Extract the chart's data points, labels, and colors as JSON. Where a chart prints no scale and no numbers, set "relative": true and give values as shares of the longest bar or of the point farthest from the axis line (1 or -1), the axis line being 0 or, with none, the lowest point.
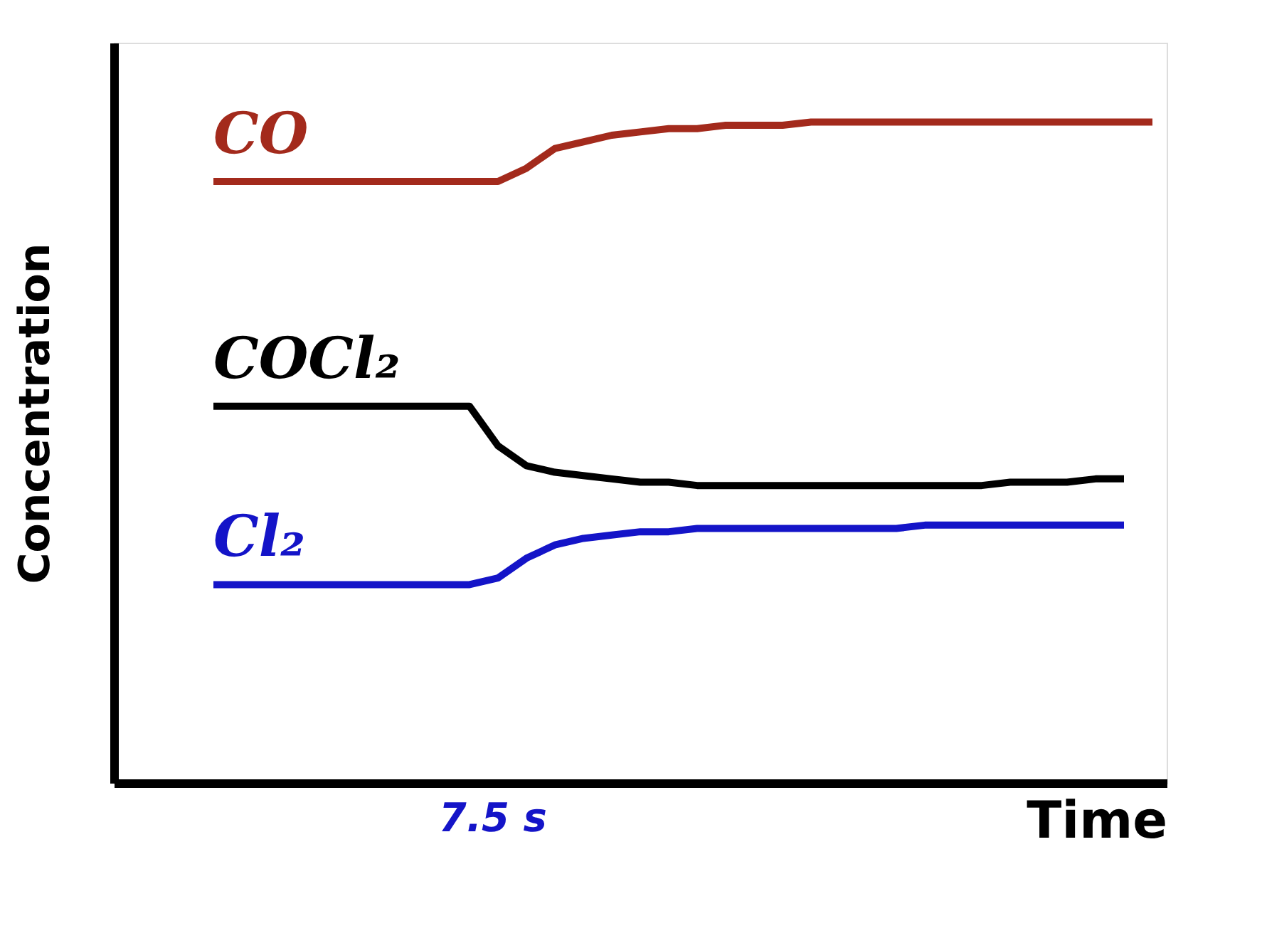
{
  "chart_data": {
    "type": "line",
    "relative": true,
    "xlabel": "Time",
    "ylabel": "Concentration",
    "grid": false,
    "marker": "none",
    "line_style": "solid",
    "annotations": [
      "7.5 s"
    ],
    "categories": [
      null,
      null,
      null,
      null,
      null,
      null,
      null,
      null,
      null,
      null,
      null,
      null,
      null,
      null,
      null,
      null,
      null,
      null,
      null,
      null,
      null,
      null,
      null,
      null,
      null,
      null,
      null,
      null,
      null,
      null,
      null,
      null,
      null,
      null,
      null,
      null,
      null
    ],
    "series": [
      {
        "name": "CO",
        "color": "#a32a1c",
        "values": [
          null,
          null,
          null,
          0.91,
          0.91,
          0.91,
          0.91,
          0.91,
          0.91,
          0.91,
          0.91,
          0.91,
          0.91,
          0.91,
          0.93,
          0.96,
          0.97,
          0.98,
          0.985,
          0.99,
          0.99,
          0.995,
          0.995,
          0.995,
          1.0,
          1.0,
          1.0,
          1.0,
          1.0,
          1.0,
          1.0,
          1.0,
          1.0,
          1.0,
          1.0,
          1.0,
          1.0
        ]
      },
      {
        "name": "COCl₂",
        "color": "#000000",
        "values": [
          null,
          null,
          null,
          0.57,
          0.57,
          0.57,
          0.57,
          0.57,
          0.57,
          0.57,
          0.57,
          0.57,
          0.57,
          0.51,
          0.48,
          0.47,
          0.465,
          0.46,
          0.455,
          0.455,
          0.45,
          0.45,
          0.45,
          0.45,
          0.45,
          0.45,
          0.45,
          0.45,
          0.45,
          0.45,
          0.45,
          0.455,
          0.455,
          0.455,
          0.46,
          0.46,
          null
        ]
      },
      {
        "name": "Cl₂",
        "color": "#1414c8",
        "values": [
          null,
          null,
          null,
          0.3,
          0.3,
          0.3,
          0.3,
          0.3,
          0.3,
          0.3,
          0.3,
          0.3,
          0.3,
          0.31,
          0.34,
          0.36,
          0.37,
          0.375,
          0.38,
          0.38,
          0.385,
          0.385,
          0.385,
          0.385,
          0.385,
          0.385,
          0.385,
          0.385,
          0.39,
          0.39,
          0.39,
          0.39,
          0.39,
          0.39,
          0.39,
          0.39,
          null
        ]
      }
    ]
  }
}
